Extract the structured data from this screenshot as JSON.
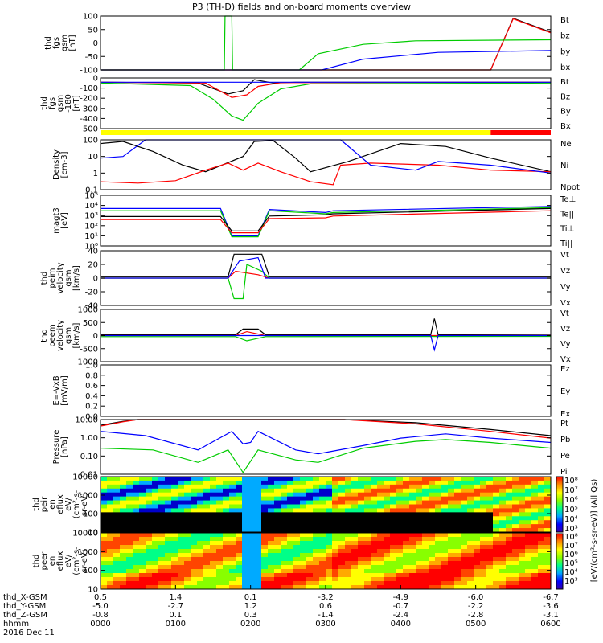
{
  "title": "P3 (TH-D) fields and on-board moments overview",
  "chart_data": [
    {
      "type": "line",
      "id": "fgs",
      "ylabel": [
        "thd",
        "fgs",
        "gsm",
        "[nT]"
      ],
      "ylim": [
        -100,
        100
      ],
      "yticks": [
        "100",
        "50",
        "0",
        "-50",
        "-100"
      ],
      "legend": [
        {
          "name": "Bt",
          "color": "#000000"
        },
        {
          "name": "bz",
          "color": "#ff0000"
        },
        {
          "name": "by",
          "color": "#00cc00"
        },
        {
          "name": "bx",
          "color": "#0000ff"
        }
      ],
      "series": [
        {
          "name": "Bt",
          "color": "#000000",
          "x": [
            0,
            5.2,
            5.5,
            6.0
          ],
          "y": [
            -100,
            -100,
            92,
            40
          ]
        },
        {
          "name": "bz",
          "color": "#ff0000",
          "x": [
            0,
            5.2,
            5.5,
            6.0
          ],
          "y": [
            -100,
            -100,
            90,
            38
          ]
        },
        {
          "name": "by",
          "color": "#00cc00",
          "x": [
            0,
            1.65,
            1.66,
            1.75,
            1.76,
            2.65,
            2.9,
            3.5,
            4.2,
            6.0
          ],
          "y": [
            -100,
            -100,
            100,
            100,
            -100,
            -100,
            -40,
            -5,
            8,
            12
          ]
        },
        {
          "name": "bx",
          "color": "#0000ff",
          "x": [
            0,
            2.95,
            3.5,
            4.5,
            6.0
          ],
          "y": [
            -100,
            -100,
            -60,
            -35,
            -28
          ]
        }
      ]
    },
    {
      "type": "line",
      "id": "fgs-gsm-180",
      "ylabel": [
        "thd",
        "fgs",
        "gsm",
        "-180",
        "[nT]"
      ],
      "ylim": [
        -550,
        50
      ],
      "yticks": [
        "0",
        "-100",
        "-200",
        "-300",
        "-400",
        "-500"
      ],
      "legend": [
        {
          "name": "Bt",
          "color": "#000000"
        },
        {
          "name": "Bz",
          "color": "#ff0000"
        },
        {
          "name": "By",
          "color": "#00cc00"
        },
        {
          "name": "Bx",
          "color": "#0000ff"
        }
      ],
      "series": [
        {
          "name": "Bt",
          "color": "#000000",
          "x": [
            0,
            1.3,
            1.7,
            1.9,
            2.05,
            2.3,
            2.6,
            6.0
          ],
          "y": [
            0,
            -10,
            -140,
            -100,
            30,
            -10,
            0,
            0
          ]
        },
        {
          "name": "Bz",
          "color": "#ff0000",
          "x": [
            0,
            1.4,
            1.75,
            1.95,
            2.1,
            2.4,
            6.0
          ],
          "y": [
            0,
            -10,
            -180,
            -150,
            -50,
            -5,
            0
          ]
        },
        {
          "name": "By",
          "color": "#00cc00",
          "x": [
            0,
            1.2,
            1.5,
            1.75,
            1.9,
            2.1,
            2.4,
            2.8,
            6.0
          ],
          "y": [
            -10,
            -40,
            -200,
            -400,
            -450,
            -250,
            -80,
            -20,
            -10
          ]
        },
        {
          "name": "Bx",
          "color": "#0000ff",
          "x": [
            0,
            6.0
          ],
          "y": [
            0,
            0
          ]
        }
      ]
    },
    {
      "type": "line",
      "id": "density",
      "ylabel": [
        "Density",
        "[cm-3]"
      ],
      "ylim": [
        0.1,
        100
      ],
      "yticks": [
        "100",
        "10",
        "1",
        "0.1"
      ],
      "legend": [
        {
          "name": "Ne",
          "color": "#ff0000"
        },
        {
          "name": "Ni",
          "color": "#000000"
        },
        {
          "name": "Npot",
          "color": "#0000ff"
        }
      ],
      "series": [
        {
          "name": "Ni",
          "color": "#000000",
          "x": [
            0,
            0.3,
            0.7,
            1.1,
            1.4,
            1.9,
            2.05,
            2.3,
            2.6,
            2.8,
            3.3,
            4.0,
            4.6,
            5.2,
            6.0
          ],
          "y": [
            60,
            80,
            20,
            3,
            1.2,
            10,
            80,
            90,
            8,
            1.2,
            5,
            60,
            40,
            8,
            1.2
          ]
        },
        {
          "name": "Ne",
          "color": "#ff0000",
          "x": [
            0,
            0.5,
            1.0,
            1.4,
            1.7,
            1.9,
            2.1,
            2.4,
            2.8,
            3.1,
            3.2,
            3.6,
            4.5,
            5.2,
            6.0
          ],
          "y": [
            0.3,
            0.25,
            0.35,
            1.5,
            4,
            1.5,
            4,
            1.2,
            0.3,
            0.2,
            3,
            4,
            3,
            1.5,
            1.2
          ]
        },
        {
          "name": "Npot",
          "color": "#0000ff",
          "x": [
            0,
            0.3,
            0.6,
            3.2,
            3.6,
            4.2,
            4.5,
            5.2,
            6.0
          ],
          "y": [
            8,
            10,
            100,
            100,
            3,
            1.5,
            5,
            3,
            1.0
          ]
        }
      ]
    },
    {
      "type": "line",
      "id": "temperature",
      "ylabel": [
        "magt3",
        "[eV]"
      ],
      "ylim": [
        1,
        100000
      ],
      "yticks": [
        "10⁵",
        "10⁴",
        "10³",
        "10²",
        "10¹",
        "10⁰"
      ],
      "legend": [
        {
          "name": "Te⊥",
          "color": "#ff0000"
        },
        {
          "name": "Te||",
          "color": "#000000"
        },
        {
          "name": "Ti⊥",
          "color": "#0000ff"
        },
        {
          "name": "Ti||",
          "color": "#00cc00"
        }
      ],
      "series": [
        {
          "name": "Ti⊥",
          "color": "#0000ff",
          "x": [
            0,
            1.6,
            1.75,
            2.1,
            2.25,
            3.0,
            3.1,
            6.0
          ],
          "y": [
            5000,
            5000,
            10,
            10,
            4000,
            2000,
            3000,
            8000
          ]
        },
        {
          "name": "Ti||",
          "color": "#00cc00",
          "x": [
            0,
            1.6,
            1.75,
            2.1,
            2.25,
            3.0,
            3.1,
            6.0
          ],
          "y": [
            3000,
            3000,
            8,
            8,
            3000,
            1500,
            2000,
            6000
          ]
        },
        {
          "name": "Te||",
          "color": "#000000",
          "x": [
            0,
            1.6,
            1.75,
            2.1,
            2.25,
            3.0,
            3.1,
            6.0
          ],
          "y": [
            800,
            800,
            30,
            30,
            900,
            1200,
            1500,
            5000
          ]
        },
        {
          "name": "Te⊥",
          "color": "#ff0000",
          "x": [
            0,
            1.6,
            1.75,
            2.1,
            2.25,
            3.0,
            3.1,
            6.0
          ],
          "y": [
            400,
            400,
            20,
            20,
            500,
            600,
            900,
            3000
          ]
        }
      ]
    },
    {
      "type": "line",
      "id": "peim-velocity",
      "ylabel": [
        "thd",
        "peim",
        "velocity",
        "gsm",
        "[km/s]"
      ],
      "ylim": [
        -40,
        40
      ],
      "yticks": [
        "40",
        "20",
        "0",
        "-20",
        "-40"
      ],
      "legend": [
        {
          "name": "Vt",
          "color": "#000000"
        },
        {
          "name": "Vz",
          "color": "#ff0000"
        },
        {
          "name": "Vy",
          "color": "#00cc00"
        },
        {
          "name": "Vx",
          "color": "#0000ff"
        }
      ],
      "series": [
        {
          "name": "Vt",
          "color": "#000000",
          "x": [
            0,
            1.7,
            1.78,
            2.15,
            2.25,
            6.0
          ],
          "y": [
            2,
            2,
            35,
            35,
            2,
            2
          ]
        },
        {
          "name": "Vz",
          "color": "#ff0000",
          "x": [
            0,
            1.7,
            1.8,
            2.1,
            2.25,
            6.0
          ],
          "y": [
            0,
            0,
            10,
            5,
            0,
            0
          ]
        },
        {
          "name": "Vy",
          "color": "#00cc00",
          "x": [
            0,
            1.7,
            1.78,
            1.9,
            1.95,
            2.15,
            2.25,
            6.0
          ],
          "y": [
            0,
            0,
            -30,
            -30,
            20,
            10,
            0,
            0
          ]
        },
        {
          "name": "Vx",
          "color": "#0000ff",
          "x": [
            0,
            1.7,
            1.85,
            2.1,
            2.2,
            6.0
          ],
          "y": [
            0,
            0,
            25,
            30,
            0,
            0
          ]
        }
      ]
    },
    {
      "type": "line",
      "id": "peem-velocity",
      "ylabel": [
        "thd",
        "peem",
        "velocity",
        "gsm",
        "[km/s]"
      ],
      "ylim": [
        -1000,
        1000
      ],
      "yticks": [
        "1000",
        "500",
        "0",
        "-500",
        "-1000"
      ],
      "legend": [
        {
          "name": "Vt",
          "color": "#000000"
        },
        {
          "name": "Vz",
          "color": "#ff0000"
        },
        {
          "name": "Vy",
          "color": "#00cc00"
        },
        {
          "name": "Vx",
          "color": "#0000ff"
        }
      ],
      "series": [
        {
          "name": "Vt",
          "color": "#000000",
          "x": [
            0,
            1.8,
            1.9,
            2.1,
            2.2,
            4.4,
            4.45,
            4.5,
            6.0
          ],
          "y": [
            30,
            30,
            250,
            250,
            30,
            30,
            650,
            30,
            50
          ]
        },
        {
          "name": "Vz",
          "color": "#ff0000",
          "x": [
            0,
            1.8,
            1.95,
            2.2,
            6.0
          ],
          "y": [
            0,
            0,
            150,
            0,
            0
          ]
        },
        {
          "name": "Vy",
          "color": "#00cc00",
          "x": [
            0,
            1.8,
            1.95,
            2.2,
            6.0
          ],
          "y": [
            -40,
            -40,
            -200,
            -40,
            -30
          ]
        },
        {
          "name": "Vx",
          "color": "#0000ff",
          "x": [
            0,
            4.4,
            4.45,
            4.5,
            6.0
          ],
          "y": [
            0,
            0,
            -550,
            0,
            0
          ]
        }
      ]
    },
    {
      "type": "line",
      "id": "efield",
      "ylabel": [
        "E=-VxB",
        "[mV/m]"
      ],
      "ylim": [
        0,
        1
      ],
      "yticks": [
        "1.0",
        "0.8",
        "0.6",
        "0.4",
        "0.2",
        "0.0"
      ],
      "legend": [
        {
          "name": "Ez",
          "color": "#ff0000"
        },
        {
          "name": "Ey",
          "color": "#00cc00"
        },
        {
          "name": "Ex",
          "color": "#0000ff"
        }
      ],
      "series": []
    },
    {
      "type": "line",
      "id": "pressure",
      "ylabel": [
        "Pressure",
        "[nPa]"
      ],
      "ylim": [
        0.003,
        20
      ],
      "yticks": [
        "10.00",
        "1.00",
        "0.10",
        "0.01"
      ],
      "legend": [
        {
          "name": "Pt",
          "color": "#000000"
        },
        {
          "name": "Pb",
          "color": "#ff0000"
        },
        {
          "name": "Pe",
          "color": "#00cc00"
        },
        {
          "name": "Pi",
          "color": "#0000ff"
        }
      ],
      "series": [
        {
          "name": "Pt",
          "color": "#000000",
          "x": [
            0,
            0.3,
            0.5,
            3.25,
            4.2,
            5.2,
            6.0
          ],
          "y": [
            8,
            15,
            20,
            20,
            12,
            4,
            1.5
          ]
        },
        {
          "name": "Pb",
          "color": "#ff0000",
          "x": [
            0,
            0.3,
            0.5,
            3.25,
            4.2,
            5.2,
            6.0
          ],
          "y": [
            7,
            14,
            20,
            20,
            10,
            3,
            1.0
          ]
        },
        {
          "name": "Pi",
          "color": "#0000ff",
          "x": [
            0,
            0.6,
            1.3,
            1.75,
            1.9,
            2.0,
            2.1,
            2.6,
            2.9,
            3.5,
            4.0,
            4.6,
            5.2,
            6.0
          ],
          "y": [
            3,
            1.5,
            0.15,
            3,
            0.4,
            0.5,
            3,
            0.15,
            0.08,
            0.3,
            1.0,
            2.0,
            1.0,
            0.5
          ]
        },
        {
          "name": "Pe",
          "color": "#00cc00",
          "x": [
            0,
            0.7,
            1.3,
            1.7,
            1.9,
            2.1,
            2.6,
            2.9,
            3.5,
            4.2,
            4.6,
            5.2,
            6.0
          ],
          "y": [
            0.2,
            0.15,
            0.02,
            0.15,
            0.004,
            0.15,
            0.03,
            0.02,
            0.2,
            0.6,
            0.8,
            0.5,
            0.2
          ]
        }
      ]
    },
    {
      "type": "heatmap",
      "id": "peir-eflux",
      "ylabel": [
        "thd",
        "peir",
        "en",
        "eflux",
        "eV/",
        "(cm²-s-",
        "sr-eV)"
      ],
      "ylim": [
        5,
        30000
      ],
      "yticks": [
        "10000",
        "1000",
        "100",
        "10"
      ]
    },
    {
      "type": "heatmap",
      "id": "peer-eflux",
      "ylabel": [
        "thd",
        "peer",
        "en",
        "eflux",
        "eV/",
        "(cm²-s-",
        "sr-eV)"
      ],
      "ylim": [
        5,
        30000
      ],
      "yticks": [
        "10000",
        "1000",
        "100",
        "10"
      ]
    }
  ],
  "colorbar": {
    "label": "[eV/(cm²-s-sr-eV)] (All Qs)",
    "ticks_top": [
      "10⁸",
      "10⁷",
      "10⁶",
      "10⁵",
      "10⁴",
      "10³"
    ],
    "ticks_bottom": [
      "10⁸",
      "10⁷",
      "10⁶",
      "10⁵",
      "10⁴",
      "10³"
    ]
  },
  "status_bar": [
    {
      "x0": 0,
      "x1": 5.2,
      "color": "#ffff00"
    },
    {
      "x0": 5.2,
      "x1": 6.0,
      "color": "#ff0000"
    }
  ],
  "xaxis": {
    "range": [
      0,
      6
    ],
    "rows": [
      {
        "label": "thd_X-GSM",
        "values": [
          "0.5",
          "1.4",
          "0.1",
          "-3.2",
          "-4.9",
          "-6.0",
          "-6.7"
        ]
      },
      {
        "label": "thd_Y-GSM",
        "values": [
          "-5.0",
          "-2.7",
          "1.2",
          "0.6",
          "-0.7",
          "-2.2",
          "-3.6"
        ]
      },
      {
        "label": "thd_Z-GSM",
        "values": [
          "-0.8",
          "0.1",
          "0.3",
          "-1.4",
          "-2.4",
          "-2.8",
          "-3.1"
        ]
      },
      {
        "label": "hhmm",
        "values": [
          "0000",
          "0100",
          "0200",
          "0300",
          "0400",
          "0500",
          "0600"
        ]
      }
    ],
    "date": "2016 Dec 11"
  }
}
